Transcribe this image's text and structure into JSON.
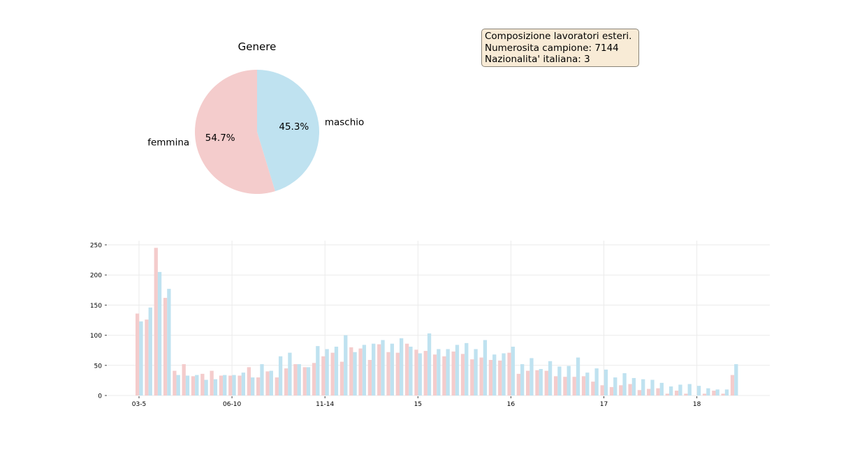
{
  "info_box": {
    "line1": "Composizione lavoratori esteri.",
    "line2": "Numerosita campione: 7144",
    "line3": "Nazionalita' italiana: 3",
    "background": "#f8ebd6"
  },
  "chart_data": [
    {
      "type": "pie",
      "title": "Genere",
      "slices": [
        {
          "label": "maschio",
          "value": 45.3,
          "pct_label": "45.3%",
          "color": "#bfe2f0"
        },
        {
          "label": "femmina",
          "value": 54.7,
          "pct_label": "54.7%",
          "color": "#f4cccc"
        }
      ],
      "start_angle_deg": 90,
      "direction": "clockwise"
    },
    {
      "type": "bar",
      "title": "",
      "xlabel": "",
      "ylabel": "",
      "ylim": [
        0,
        250
      ],
      "yticks": [
        0,
        50,
        100,
        150,
        200,
        250
      ],
      "grid": true,
      "xtick_labels": [
        {
          "index": 0,
          "label": "03-5"
        },
        {
          "index": 10,
          "label": "06-10"
        },
        {
          "index": 20,
          "label": "11-14"
        },
        {
          "index": 30,
          "label": "15"
        },
        {
          "index": 40,
          "label": "16"
        },
        {
          "index": 50,
          "label": "17"
        },
        {
          "index": 60,
          "label": "18"
        }
      ],
      "series": [
        {
          "color": "#f4cccc",
          "values": [
            136,
            126,
            245,
            162,
            41,
            52,
            32,
            36,
            41,
            33,
            33,
            33,
            47,
            30,
            40,
            30,
            45,
            52,
            47,
            54,
            65,
            71,
            56,
            80,
            78,
            59,
            85,
            72,
            71,
            86,
            76,
            74,
            68,
            65,
            73,
            69,
            60,
            63,
            59,
            58,
            71,
            36,
            41,
            42,
            41,
            32,
            31,
            31,
            32,
            23,
            17,
            14,
            17,
            19,
            9,
            11,
            12,
            3,
            8,
            3,
            0,
            3,
            8,
            3,
            34
          ]
        },
        {
          "color": "#bfe2f0",
          "values": [
            123,
            146,
            205,
            177,
            34,
            33,
            34,
            26,
            27,
            34,
            34,
            38,
            30,
            52,
            41,
            65,
            71,
            52,
            47,
            82,
            77,
            81,
            100,
            72,
            84,
            86,
            92,
            86,
            95,
            81,
            70,
            103,
            77,
            77,
            84,
            87,
            77,
            92,
            68,
            70,
            81,
            52,
            62,
            44,
            57,
            48,
            49,
            63,
            38,
            45,
            43,
            30,
            37,
            29,
            27,
            26,
            21,
            15,
            18,
            19,
            16,
            12,
            10,
            10,
            52
          ]
        }
      ]
    }
  ]
}
